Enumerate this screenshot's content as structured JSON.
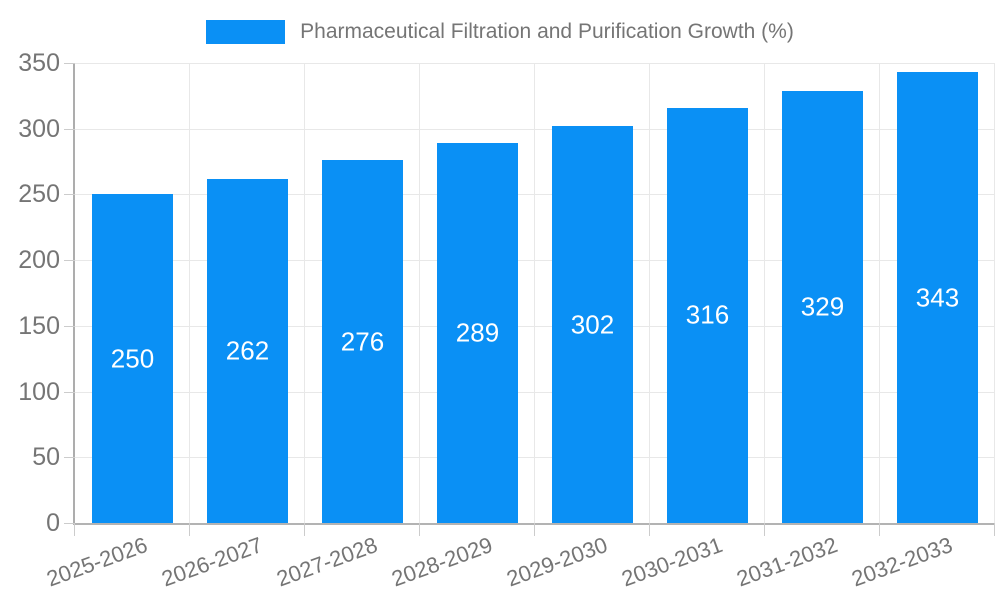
{
  "chart_data": {
    "type": "bar",
    "title": "Pharmaceutical Filtration and Purification Growth (%)",
    "categories": [
      "2025-2026",
      "2026-2027",
      "2027-2028",
      "2028-2029",
      "2029-2030",
      "2030-2031",
      "2031-2032",
      "2032-2033"
    ],
    "series": [
      {
        "name": "Pharmaceutical Filtration and Purification Growth (%)",
        "values": [
          250,
          262,
          276,
          289,
          302,
          316,
          329,
          343
        ]
      }
    ],
    "bar_value_labels": [
      "250",
      "262",
      "276",
      "289",
      "302",
      "316",
      "329",
      "343"
    ],
    "xlabel": "",
    "ylabel": "",
    "ylim": [
      0,
      350
    ],
    "yticks": [
      0,
      50,
      100,
      150,
      200,
      250,
      300,
      350
    ],
    "grid": true,
    "legend_position": "top-center",
    "x_tick_rotation_deg": -20,
    "colors": {
      "bar": "#0a90f5",
      "bar_value_text": "#ffffff",
      "axis_text": "#757575",
      "legend_text": "#757575",
      "gridline": "#e8e8e8",
      "axis_line": "#b0b0b0",
      "tick": "#cccccc",
      "background": "#ffffff"
    }
  }
}
